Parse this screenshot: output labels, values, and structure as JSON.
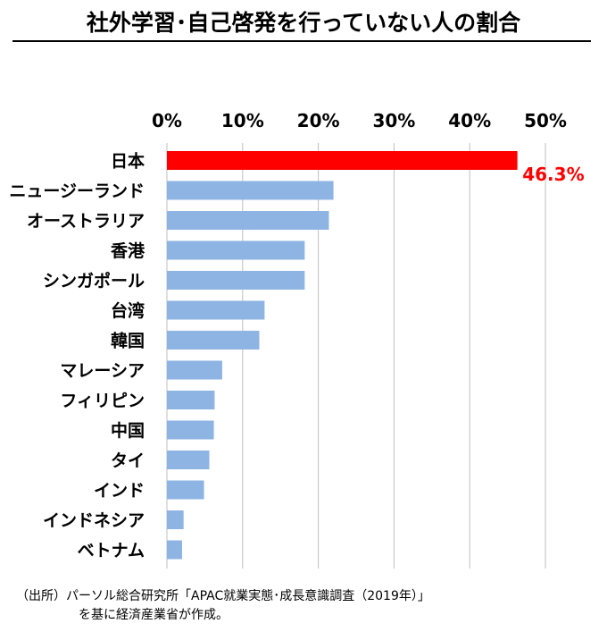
{
  "title": "社外学習･自己啓発を行っていない人の割合",
  "note": {
    "line1": "（出所）パーソル総合研究所「APAC就業実態･成長意識調査（2019年）」",
    "line2": "を基に経済産業省が作成。"
  },
  "colors": {
    "highlight": "#ff0000",
    "bar": "#8eb4e3",
    "grid": "#bfbfbf",
    "label_highlight": "#ff0000"
  },
  "chart_data": {
    "type": "bar",
    "orientation": "horizontal",
    "categories": [
      "日本",
      "ニュージーランド",
      "オーストラリア",
      "香港",
      "シンガポール",
      "台湾",
      "韓国",
      "マレーシア",
      "フィリピン",
      "中国",
      "タイ",
      "インド",
      "インドネシア",
      "ベトナム"
    ],
    "values": [
      46.3,
      22.0,
      21.4,
      18.2,
      18.2,
      12.9,
      12.2,
      7.3,
      6.3,
      6.2,
      5.6,
      4.9,
      2.2,
      2.0
    ],
    "highlight_index": 0,
    "data_labels": [
      {
        "index": 0,
        "text": "46.3%"
      }
    ],
    "xlim": [
      0,
      50
    ],
    "xticks": [
      "0%",
      "10%",
      "20%",
      "30%",
      "40%",
      "50%"
    ],
    "xtick_values": [
      0,
      10,
      20,
      30,
      40,
      50
    ],
    "xaxis_position": "top",
    "grid": true
  }
}
